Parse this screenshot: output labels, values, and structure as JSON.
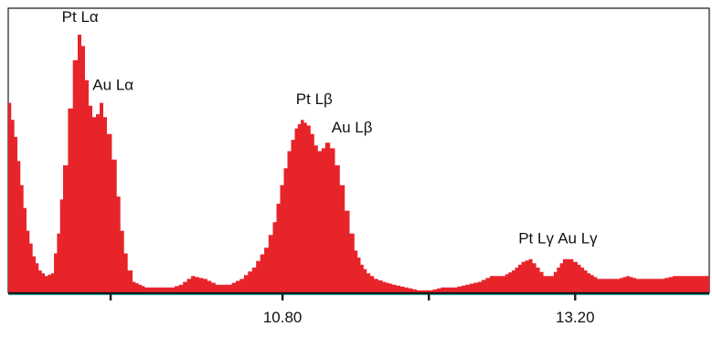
{
  "chart_data": {
    "type": "area",
    "title": "",
    "xlabel": "",
    "ylabel": "",
    "xlim": [
      8.55,
      14.3
    ],
    "ylim": [
      0,
      1.0
    ],
    "grid": false,
    "x_ticks": [
      {
        "value": 9.39,
        "label": ""
      },
      {
        "value": 10.8,
        "label": "10.80"
      },
      {
        "value": 12.0,
        "label": ""
      },
      {
        "value": 13.2,
        "label": "13.20"
      }
    ],
    "series": [
      {
        "color": "#e8242b",
        "x": [
          8.55,
          8.6,
          8.65,
          8.7,
          8.75,
          8.8,
          8.85,
          8.9,
          8.95,
          9.0,
          9.04,
          9.08,
          9.12,
          9.15,
          9.18,
          9.21,
          9.24,
          9.27,
          9.3,
          9.33,
          9.36,
          9.4,
          9.44,
          9.47,
          9.5,
          9.53,
          9.57,
          9.62,
          9.67,
          9.72,
          9.77,
          9.82,
          9.88,
          9.95,
          10.05,
          10.15,
          10.25,
          10.35,
          10.45,
          10.55,
          10.65,
          10.72,
          10.78,
          10.84,
          10.9,
          10.95,
          11.0,
          11.03,
          11.06,
          11.09,
          11.12,
          11.15,
          11.19,
          11.23,
          11.27,
          11.31,
          11.35,
          11.39,
          11.44,
          11.49,
          11.55,
          11.62,
          11.7,
          11.8,
          11.9,
          12.0,
          12.1,
          12.2,
          12.3,
          12.4,
          12.5,
          12.6,
          12.68,
          12.76,
          12.82,
          12.88,
          12.94,
          13.0,
          13.05,
          13.1,
          13.15,
          13.22,
          13.3,
          13.38,
          13.46,
          13.54,
          13.62,
          13.7,
          13.8,
          13.9,
          14.0,
          14.1,
          14.2,
          14.3
        ],
        "values": [
          0.67,
          0.55,
          0.38,
          0.22,
          0.13,
          0.08,
          0.06,
          0.07,
          0.21,
          0.45,
          0.65,
          0.82,
          0.91,
          0.87,
          0.75,
          0.66,
          0.62,
          0.63,
          0.67,
          0.62,
          0.56,
          0.47,
          0.34,
          0.22,
          0.14,
          0.08,
          0.04,
          0.03,
          0.02,
          0.02,
          0.02,
          0.02,
          0.02,
          0.03,
          0.06,
          0.05,
          0.03,
          0.03,
          0.05,
          0.09,
          0.16,
          0.25,
          0.38,
          0.5,
          0.58,
          0.61,
          0.59,
          0.56,
          0.52,
          0.5,
          0.51,
          0.53,
          0.51,
          0.45,
          0.38,
          0.29,
          0.21,
          0.15,
          0.1,
          0.07,
          0.05,
          0.04,
          0.03,
          0.02,
          0.01,
          0.01,
          0.02,
          0.02,
          0.03,
          0.04,
          0.06,
          0.06,
          0.08,
          0.11,
          0.12,
          0.09,
          0.06,
          0.06,
          0.09,
          0.12,
          0.12,
          0.1,
          0.07,
          0.05,
          0.05,
          0.05,
          0.06,
          0.05,
          0.05,
          0.05,
          0.06,
          0.06,
          0.06,
          0.06
        ]
      }
    ],
    "annotations": [
      {
        "text": "Pt Lα",
        "x": 9.14,
        "y": 0.93
      },
      {
        "text": "Au Lα",
        "x": 9.41,
        "y": 0.69
      },
      {
        "text": "Pt Lβ",
        "x": 11.06,
        "y": 0.64
      },
      {
        "text": "Au Lβ",
        "x": 11.37,
        "y": 0.54
      },
      {
        "text": "Pt Lγ",
        "x": 12.88,
        "y": 0.15
      },
      {
        "text": "Au Lγ",
        "x": 13.22,
        "y": 0.15
      }
    ]
  },
  "colors": {
    "fill": "#e8242b",
    "baseline": "#1a1a1a",
    "baseline_highlight": "#0a8f82",
    "frame": "#1a1a1a"
  }
}
